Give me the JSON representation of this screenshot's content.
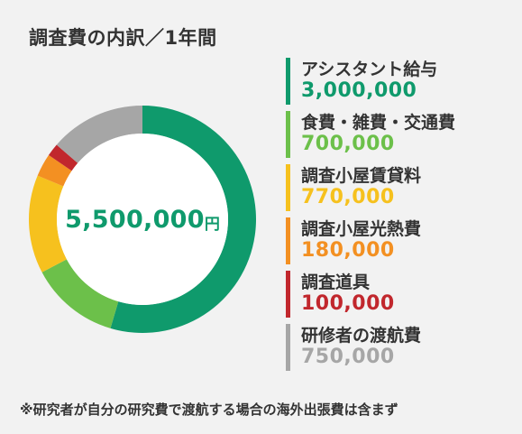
{
  "title": "調査費の内訳／1年間",
  "total": {
    "value": "5,500,000",
    "unit": "円"
  },
  "chart_data": {
    "type": "pie",
    "title": "調査費の内訳／1年間",
    "categories": [
      "アシスタント給与",
      "食費・雑費・交通費",
      "調査小屋賃貸料",
      "調査小屋光熱費",
      "調査道具",
      "研修者の渡航費"
    ],
    "values": [
      3000000,
      700000,
      770000,
      180000,
      100000,
      750000
    ],
    "colors": [
      "#0f9a6c",
      "#6cc04a",
      "#f6c11e",
      "#f39022",
      "#c1272d",
      "#a6a6a6"
    ],
    "donut": true,
    "legend_position": "right"
  },
  "legend": [
    {
      "label": "アシスタント給与",
      "value": "3,000,000",
      "color": "#0f9a6c"
    },
    {
      "label": "食費・雑費・交通費",
      "value": "700,000",
      "color": "#6cc04a"
    },
    {
      "label": "調査小屋賃貸料",
      "value": "770,000",
      "color": "#f6c11e"
    },
    {
      "label": "調査小屋光熱費",
      "value": "180,000",
      "color": "#f39022"
    },
    {
      "label": "調査道具",
      "value": "100,000",
      "color": "#c1272d"
    },
    {
      "label": "研修者の渡航費",
      "value": "750,000",
      "color": "#a6a6a6"
    }
  ],
  "footnote": "※研究者が自分の研究費で渡航する場合の海外出張費は含まず"
}
